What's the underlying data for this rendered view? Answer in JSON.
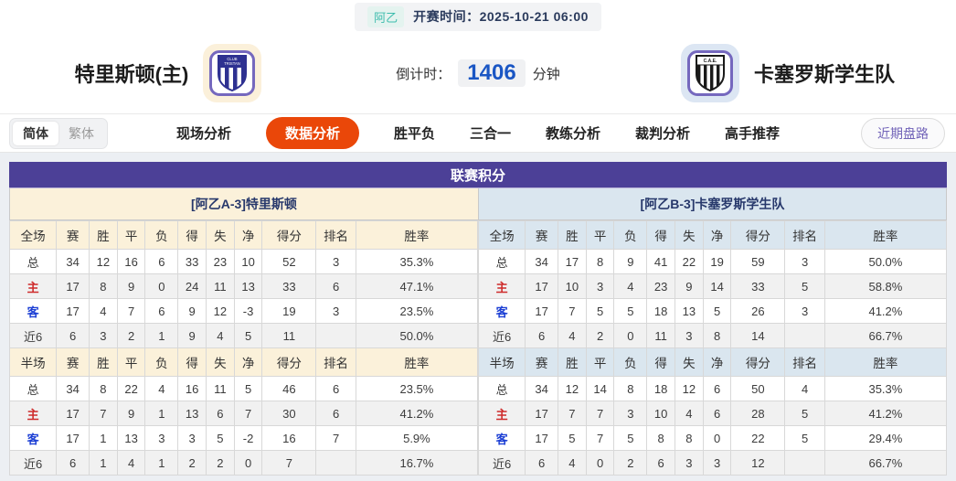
{
  "top": {
    "league_badge": "阿乙",
    "kickoff_text": "开赛时间：2025-10-21 06:00"
  },
  "header": {
    "home_team": "特里斯顿(主)",
    "away_team": "卡塞罗斯学生队",
    "home_logo_icon": "tristan-club-crest",
    "away_logo_icon": "caseros-students-crest",
    "countdown_label": "倒计时：",
    "countdown_value": "1406",
    "countdown_unit": "分钟"
  },
  "nav": {
    "lang_simplified": "简体",
    "lang_traditional": "繁体",
    "active_tab": "数据分析",
    "tabs": [
      "现场分析",
      "数据分析",
      "胜平负",
      "三合一",
      "教练分析",
      "裁判分析",
      "高手推荐"
    ],
    "recent_button": "近期盘路"
  },
  "colors": {
    "accent_orange": "#EA4709",
    "header_purple": "#4C4097",
    "badge_teal": "#3DBCAD",
    "home_row_red": "#CE2B2B",
    "away_row_blue": "#1C3FD4",
    "home_tint": "#FBF1DA",
    "away_tint": "#DAE6EF",
    "countdown_blue": "#1A56C4"
  },
  "table": {
    "title": "联赛积分",
    "stat_columns": [
      "赛",
      "胜",
      "平",
      "负",
      "得",
      "失",
      "净",
      "得分",
      "排名",
      "胜率"
    ],
    "home": {
      "header": "[阿乙A-3]特里斯顿",
      "sections": [
        {
          "scope": "全场",
          "rows": [
            {
              "label": "总",
              "type": "total-mark",
              "cells": [
                "34",
                "12",
                "16",
                "6",
                "33",
                "23",
                "10",
                "52",
                "3",
                "35.3%"
              ]
            },
            {
              "label": "主",
              "type": "home-mark",
              "cells": [
                "17",
                "8",
                "9",
                "0",
                "24",
                "11",
                "13",
                "33",
                "6",
                "47.1%"
              ]
            },
            {
              "label": "客",
              "type": "away-mark",
              "cells": [
                "17",
                "4",
                "7",
                "6",
                "9",
                "12",
                "-3",
                "19",
                "3",
                "23.5%"
              ]
            },
            {
              "label": "近6",
              "type": "recent-mark",
              "cells": [
                "6",
                "3",
                "2",
                "1",
                "9",
                "4",
                "5",
                "11",
                "",
                "50.0%"
              ]
            }
          ]
        },
        {
          "scope": "半场",
          "rows": [
            {
              "label": "总",
              "type": "total-mark",
              "cells": [
                "34",
                "8",
                "22",
                "4",
                "16",
                "11",
                "5",
                "46",
                "6",
                "23.5%"
              ]
            },
            {
              "label": "主",
              "type": "home-mark",
              "cells": [
                "17",
                "7",
                "9",
                "1",
                "13",
                "6",
                "7",
                "30",
                "6",
                "41.2%"
              ]
            },
            {
              "label": "客",
              "type": "away-mark",
              "cells": [
                "17",
                "1",
                "13",
                "3",
                "3",
                "5",
                "-2",
                "16",
                "7",
                "5.9%"
              ]
            },
            {
              "label": "近6",
              "type": "recent-mark",
              "cells": [
                "6",
                "1",
                "4",
                "1",
                "2",
                "2",
                "0",
                "7",
                "",
                "16.7%"
              ]
            }
          ]
        }
      ]
    },
    "away": {
      "header": "[阿乙B-3]卡塞罗斯学生队",
      "sections": [
        {
          "scope": "全场",
          "rows": [
            {
              "label": "总",
              "type": "total-mark",
              "cells": [
                "34",
                "17",
                "8",
                "9",
                "41",
                "22",
                "19",
                "59",
                "3",
                "50.0%"
              ]
            },
            {
              "label": "主",
              "type": "home-mark",
              "cells": [
                "17",
                "10",
                "3",
                "4",
                "23",
                "9",
                "14",
                "33",
                "5",
                "58.8%"
              ]
            },
            {
              "label": "客",
              "type": "away-mark",
              "cells": [
                "17",
                "7",
                "5",
                "5",
                "18",
                "13",
                "5",
                "26",
                "3",
                "41.2%"
              ]
            },
            {
              "label": "近6",
              "type": "recent-mark",
              "cells": [
                "6",
                "4",
                "2",
                "0",
                "11",
                "3",
                "8",
                "14",
                "",
                "66.7%"
              ]
            }
          ]
        },
        {
          "scope": "半场",
          "rows": [
            {
              "label": "总",
              "type": "total-mark",
              "cells": [
                "34",
                "12",
                "14",
                "8",
                "18",
                "12",
                "6",
                "50",
                "4",
                "35.3%"
              ]
            },
            {
              "label": "主",
              "type": "home-mark",
              "cells": [
                "17",
                "7",
                "7",
                "3",
                "10",
                "4",
                "6",
                "28",
                "5",
                "41.2%"
              ]
            },
            {
              "label": "客",
              "type": "away-mark",
              "cells": [
                "17",
                "5",
                "7",
                "5",
                "8",
                "8",
                "0",
                "22",
                "5",
                "29.4%"
              ]
            },
            {
              "label": "近6",
              "type": "recent-mark",
              "cells": [
                "6",
                "4",
                "0",
                "2",
                "6",
                "3",
                "3",
                "12",
                "",
                "66.7%"
              ]
            }
          ]
        }
      ]
    }
  }
}
